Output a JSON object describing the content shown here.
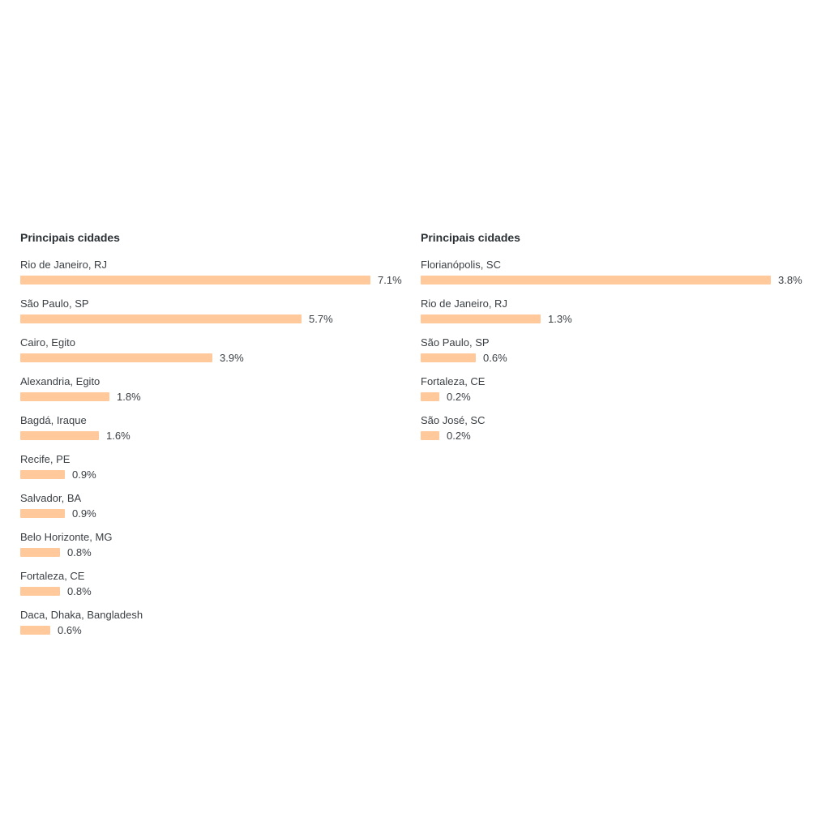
{
  "bar_color": "#ffc99b",
  "chart_data": [
    {
      "type": "bar",
      "orientation": "horizontal",
      "title": "Principais cidades",
      "categories": [
        "Rio de Janeiro, RJ",
        "São Paulo, SP",
        "Cairo, Egito",
        "Alexandria, Egito",
        "Bagdá, Iraque",
        "Recife, PE",
        "Salvador, BA",
        "Belo Horizonte, MG",
        "Fortaleza, CE",
        "Daca, Dhaka, Bangladesh"
      ],
      "values": [
        7.1,
        5.7,
        3.9,
        1.8,
        1.6,
        0.9,
        0.9,
        0.8,
        0.8,
        0.6
      ],
      "value_labels": [
        "7.1%",
        "5.7%",
        "3.9%",
        "1.8%",
        "1.6%",
        "0.9%",
        "0.9%",
        "0.8%",
        "0.8%",
        "0.6%"
      ]
    },
    {
      "type": "bar",
      "orientation": "horizontal",
      "title": "Principais cidades",
      "categories": [
        "Florianópolis, SC",
        "Rio de Janeiro, RJ",
        "São Paulo, SP",
        "Fortaleza, CE",
        "São José, SC"
      ],
      "values": [
        3.8,
        1.3,
        0.6,
        0.2,
        0.2
      ],
      "value_labels": [
        "3.8%",
        "1.3%",
        "0.6%",
        "0.2%",
        "0.2%"
      ]
    }
  ]
}
